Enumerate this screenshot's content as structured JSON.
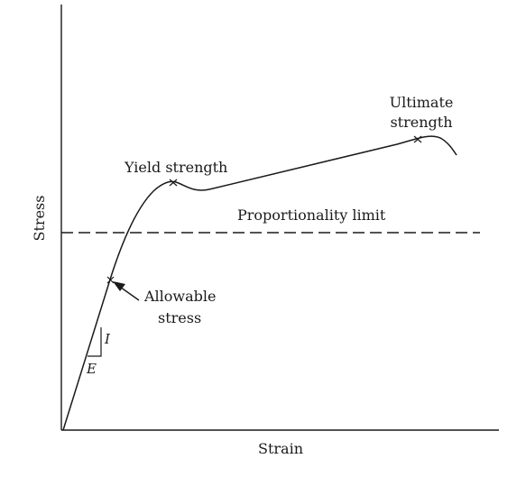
{
  "diagram": {
    "axis": {
      "x_label": "Strain",
      "y_label": "Stress"
    },
    "annotations": {
      "ultimate_line1": "Ultimate",
      "ultimate_line2": "strength",
      "yield": "Yield strength",
      "proportionality": "Proportionality limit",
      "allowable_line1": "Allowable",
      "allowable_line2": "stress",
      "slope_rise": "I",
      "slope_run": "E"
    },
    "colors": {
      "ink": "#1a1a1a",
      "background": "#ffffff"
    }
  }
}
